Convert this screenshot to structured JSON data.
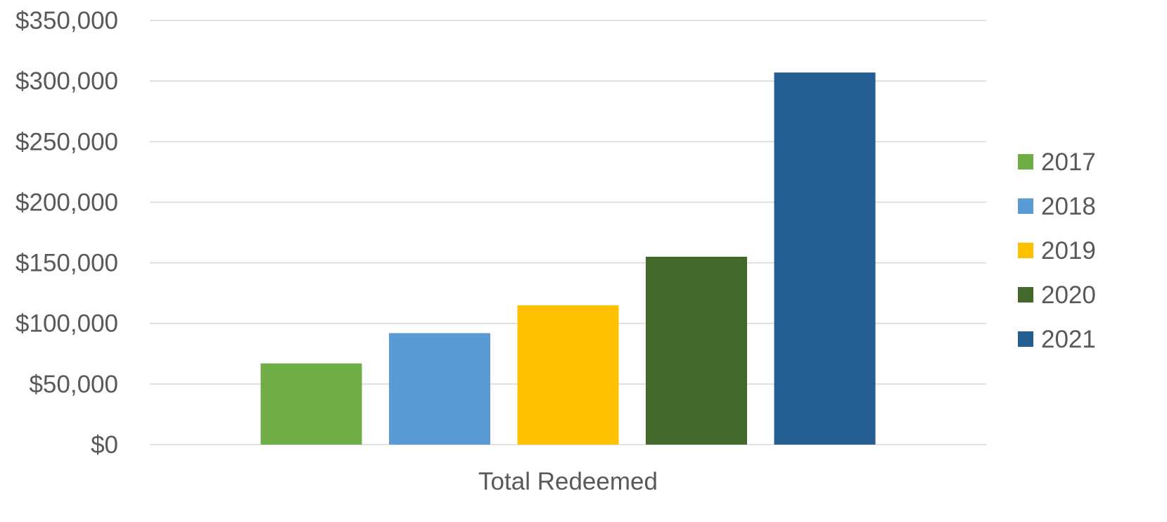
{
  "chart_data": {
    "type": "bar",
    "categories": [
      "Total Redeemed"
    ],
    "series": [
      {
        "name": "2017",
        "values": [
          67000
        ],
        "color": "#70AD47"
      },
      {
        "name": "2018",
        "values": [
          92000
        ],
        "color": "#5B9BD5"
      },
      {
        "name": "2019",
        "values": [
          115000
        ],
        "color": "#FFC000"
      },
      {
        "name": "2020",
        "values": [
          155000
        ],
        "color": "#43682B"
      },
      {
        "name": "2021",
        "values": [
          307000
        ],
        "color": "#255E91"
      }
    ],
    "ylim": [
      0,
      350000
    ],
    "yticks": [
      {
        "value": 0,
        "label": "$0"
      },
      {
        "value": 50000,
        "label": "$50,000"
      },
      {
        "value": 100000,
        "label": "$100,000"
      },
      {
        "value": 150000,
        "label": "$150,000"
      },
      {
        "value": 200000,
        "label": "$200,000"
      },
      {
        "value": 250000,
        "label": "$250,000"
      },
      {
        "value": 300000,
        "label": "$300,000"
      },
      {
        "value": 350000,
        "label": "$350,000"
      }
    ],
    "grid": true,
    "legend_position": "right",
    "title": "",
    "xlabel": "",
    "ylabel": ""
  }
}
